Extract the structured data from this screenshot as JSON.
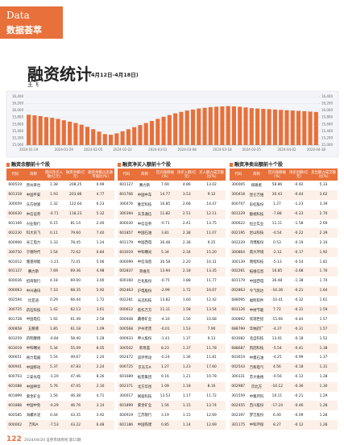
{
  "header": {
    "section_en": "Data",
    "section_cn": "数据荟萃",
    "title": "融资统计",
    "subtitle": "(4月12日-4月18日)",
    "author": "王飞"
  },
  "chart_data": {
    "type": "bar",
    "color": "#e8703a",
    "categories": [
      "2024-01-19",
      null,
      null,
      null,
      null,
      null,
      "2024-01-29",
      null,
      null,
      null,
      null,
      "2024-02-05",
      null,
      null,
      null,
      null,
      "2024-02-22",
      null,
      null,
      null,
      null,
      null,
      "2024-03-01",
      null,
      null,
      null,
      null,
      "2024-03-08",
      null,
      null,
      null,
      null,
      null,
      "2024-03-18",
      null,
      null,
      null,
      null,
      "2024-03-25",
      null,
      null,
      null,
      null,
      null,
      "2024-04-02",
      null,
      null,
      null,
      null,
      "2024-04-18"
    ],
    "values": [
      15880,
      15860,
      15840,
      15810,
      15790,
      15760,
      15720,
      15680,
      15640,
      15590,
      15530,
      15460,
      15390,
      15320,
      15300,
      15340,
      15400,
      15460,
      15520,
      15580,
      15640,
      15700,
      15760,
      15820,
      15870,
      15920,
      15960,
      16000,
      16030,
      16060,
      16080,
      16100,
      16110,
      16120,
      16130,
      16120,
      16110,
      16090,
      16070,
      16060,
      16050,
      16040,
      16030,
      16020,
      16010,
      16000,
      15990,
      15980,
      15970,
      15960
    ],
    "ylim": [
      15000,
      16400
    ],
    "yticks": [
      {
        "value": 15000,
        "label": "15,000"
      },
      {
        "value": 15200,
        "label": "15,200"
      },
      {
        "value": 15400,
        "label": "15,400"
      },
      {
        "value": 15600,
        "label": "15,600"
      },
      {
        "value": 15800,
        "label": "15,800"
      },
      {
        "value": 16000,
        "label": "16,000"
      },
      {
        "value": 16200,
        "label": "16,200"
      },
      {
        "value": 16400,
        "label": "16,400"
      }
    ],
    "y2lim": [
      15000,
      16400
    ],
    "y2ticks": [
      {
        "value": 15000,
        "label": "15,000"
      },
      {
        "value": 15200,
        "label": "15,200"
      },
      {
        "value": 15400,
        "label": "15,400"
      },
      {
        "value": 15600,
        "label": "15,600"
      },
      {
        "value": 15800,
        "label": "15,800"
      },
      {
        "value": 16000,
        "label": "16,000"
      },
      {
        "value": 16200,
        "label": "16,200"
      },
      {
        "value": 16400,
        "label": "16,400"
      }
    ],
    "grid": true
  },
  "tables": [
    {
      "title": "融资余额前十个股",
      "columns": [
        "代码",
        "简称",
        "期间净买入额(亿元)",
        "融资余额(亿元)",
        "融资余额占流通市值比(%)"
      ],
      "rows": [
        [
          "600519",
          "贵州茅台",
          "1.38",
          "208.25",
          "0.99"
        ],
        [
          "601318",
          "中国平安",
          "1.93",
          "203.86",
          "4.77"
        ],
        [
          "300059",
          "东方财富",
          "1.32",
          "122.64",
          "6.23"
        ],
        [
          "600030",
          "中信证券",
          "-0.71",
          "118.23",
          "5.32"
        ],
        [
          "601166",
          "兴业银行",
          "6.15",
          "81.14",
          "2.40"
        ],
        [
          "002230",
          "科大讯飞",
          "0.11",
          "79.60",
          "7.40"
        ],
        [
          "600900",
          "长江电力",
          "1.33",
          "78.45",
          "1.24"
        ],
        [
          "300750",
          "宁德时代",
          "1.54",
          "72.62",
          "0.84"
        ],
        [
          "601012",
          "隆基绿能",
          "-1.21",
          "72.01",
          "5.06"
        ],
        [
          "601127",
          "赛力斯",
          "7.69",
          "69.36",
          "4.98"
        ],
        [
          "600036",
          "招商银行",
          "4.18",
          "69.00",
          "3.00"
        ],
        [
          "000063",
          "中兴通讯",
          "7.10",
          "68.35",
          "5.92"
        ],
        [
          "002594",
          "比亚迪",
          "0.29",
          "66.44",
          "1.72"
        ],
        [
          "300725",
          "药石科技",
          "1.42",
          "62.13",
          "3.61"
        ],
        [
          "601728",
          "中国电信",
          "1.92",
          "61.49",
          "2.58"
        ],
        [
          "000858",
          "五粮液",
          "1.85",
          "61.18",
          "1.09"
        ],
        [
          "603259",
          "药明康德",
          "-0.84",
          "58.40",
          "5.28"
        ],
        [
          "603019",
          "中科曙光",
          "5.34",
          "55.09",
          "8.05"
        ],
        [
          "000651",
          "格力电器",
          "5.54",
          "49.67",
          "2.20"
        ],
        [
          "600941",
          "中国移动",
          "5.37",
          "47.83",
          "2.24"
        ],
        [
          "600703",
          "三安光电",
          "-1.20",
          "47.46",
          "8.26"
        ],
        [
          "601088",
          "中国神华",
          "5.76",
          "47.05",
          "2.10"
        ],
        [
          "601899",
          "紫金矿业",
          "1.56",
          "46.38",
          "4.71"
        ],
        [
          "601888",
          "中国中免",
          "-0.29",
          "46.76",
          "3.14"
        ],
        [
          "600585",
          "海螺水泥",
          "0.44",
          "43.35",
          "3.92"
        ],
        [
          "000002",
          "万科A",
          "-7.53",
          "43.22",
          "6.48"
        ]
      ]
    },
    {
      "title": "融资净买入额前十个股",
      "columns": [
        "代码",
        "简称",
        "区间涨跌幅(%)",
        "净买入额(亿元)",
        "买入额占成交额比(%)"
      ],
      "rows": [
        [
          "601127",
          "赛力斯",
          "7.69",
          "4.86",
          "13.02"
        ],
        [
          "601766",
          "中国中车",
          "14.77",
          "3.53",
          "9.12"
        ],
        [
          "300476",
          "胜宏科技",
          "16.85",
          "2.68",
          "14.47"
        ],
        [
          "300394",
          "天孚通信",
          "11.82",
          "2.51",
          "12.11"
        ],
        [
          "600030",
          "中信证券",
          "-0.71",
          "2.41",
          "13.75"
        ],
        [
          "601857",
          "中国石油",
          "3.81",
          "2.38",
          "11.07"
        ],
        [
          "601179",
          "中国西电",
          "36.48",
          "2.38",
          "9.25"
        ],
        [
          "603019",
          "中科曙光",
          "5.34",
          "2.34",
          "15.20"
        ],
        [
          "000099",
          "中信海直",
          "30.58",
          "2.20",
          "10.31"
        ],
        [
          "002837",
          "英维克",
          "13.94",
          "2.18",
          "13.35"
        ],
        [
          "600160",
          "巨化股份",
          "-0.75",
          "1.88",
          "11.77"
        ],
        [
          "002463",
          "沪电股份",
          "-2.99",
          "1.72",
          "16.67"
        ],
        [
          "002281",
          "光迅科技",
          "13.82",
          "1.60",
          "12.42"
        ],
        [
          "000612",
          "焦作万方",
          "11.11",
          "1.58",
          "13.54"
        ],
        [
          "000408",
          "藏格矿业",
          "-4.16",
          "1.56",
          "10.68"
        ],
        [
          "000568",
          "泸州老窖",
          "-0.01",
          "1.53",
          "7.90"
        ],
        [
          "000933",
          "神火股份",
          "-1.41",
          "1.37",
          "9.13"
        ],
        [
          "300502",
          "新易盛",
          "8.23",
          "1.37",
          "11.78"
        ],
        [
          "002472",
          "双环传动",
          "-0.24",
          "1.36",
          "11.81"
        ],
        [
          "000725",
          "京东方A",
          "1.27",
          "1.23",
          "17.60"
        ],
        [
          "601689",
          "拓普集团",
          "9.16",
          "1.21",
          "10.78"
        ],
        [
          "002371",
          "北方华创",
          "1.09",
          "1.18",
          "8.16"
        ],
        [
          "300017",
          "网宿科技",
          "13.53",
          "1.17",
          "11.72"
        ],
        [
          "601899",
          "紫金矿业",
          "1.56",
          "1.15",
          "13.74"
        ],
        [
          "600919",
          "江苏银行",
          "3.19",
          "1.15",
          "12.69"
        ],
        [
          "601186",
          "中国铁建",
          "0.85",
          "1.14",
          "12.69"
        ]
      ]
    },
    {
      "title": "融资净卖出额前十个股",
      "columns": [
        "代码",
        "简称",
        "区间涨跌幅(%)",
        "净卖出额(亿元)",
        "卖出额占成交额比(%)"
      ],
      "rows": [
        [
          "300005",
          "探路者",
          "58.86",
          "-0.92",
          "5.33"
        ],
        [
          "300418",
          "昆仑万维",
          "30.43",
          "-0.44",
          "3.62"
        ],
        [
          "600707",
          "彩虹股份",
          "1.27",
          "-1.23",
          "3.39"
        ],
        [
          "001229",
          "魅视科技",
          "-7.88",
          "-0.23",
          "2.70"
        ],
        [
          "000622",
          "恒立实业",
          "11.11",
          "-1.58",
          "2.69"
        ],
        [
          "002195",
          "岩山科技",
          "-0.54",
          "-0.22",
          "2.39"
        ],
        [
          "002229",
          "鸿博股份",
          "0.53",
          "-0.19",
          "2.10"
        ],
        [
          "300864",
          "南大环境",
          "-2.12",
          "-0.17",
          "1.92"
        ],
        [
          "300139",
          "晓程科技",
          "-5.13",
          "-0.54",
          "1.81"
        ],
        [
          "002261",
          "拓维信息",
          "16.85",
          "-2.68",
          "1.76"
        ],
        [
          "601179",
          "中国西电",
          "36.48",
          "-1.38",
          "1.70"
        ],
        [
          "002863",
          "今飞凯达",
          "-10.36",
          "-0.21",
          "1.64"
        ],
        [
          "688095",
          "福昕软件",
          "-10.41",
          "-0.32",
          "1.61"
        ],
        [
          "603126",
          "中材节能",
          "7.72",
          "-0.31",
          "1.59"
        ],
        [
          "000892",
          "欢瑞世纪",
          "-15.66",
          "-0.44",
          "1.57"
        ],
        [
          "688799",
          "华纳药厂",
          "-4.37",
          "-0.31",
          "1.57"
        ],
        [
          "603082",
          "北自科技",
          "13.01",
          "-0.18",
          "1.52"
        ],
        [
          "688687",
          "凯因科技",
          "-5.54",
          "-0.41",
          "1.38"
        ],
        [
          "603619",
          "中曼石油",
          "-4.25",
          "-0.99",
          "1.37"
        ],
        [
          "002543",
          "万和电气",
          "4.56",
          "-0.18",
          "1.31"
        ],
        [
          "300331",
          "苏大维格",
          "-0.56",
          "-0.12",
          "1.28"
        ],
        [
          "002987",
          "京北方",
          "-10.12",
          "-0.36",
          "1.30"
        ],
        [
          "301559",
          "中集环科",
          "10.11",
          "-0.21",
          "1.29"
        ],
        [
          "002455",
          "百川股份",
          "-17.24",
          "-0.46",
          "1.28"
        ],
        [
          "002397",
          "梦洁股份",
          "6.40",
          "-0.09",
          "1.28"
        ],
        [
          "301175",
          "中科环保",
          "8.27",
          "-0.12",
          "1.28"
        ]
      ]
    }
  ],
  "footer": {
    "page": "122",
    "info": "2024/04/20 证券市场周刊 第15期"
  }
}
